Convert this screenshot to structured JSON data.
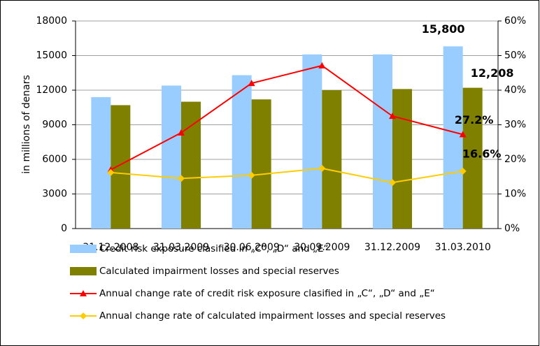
{
  "chart_data": {
    "type": "combo",
    "y_label": "in millions of denars",
    "categories": [
      "31.12.2008",
      "31.03.2009",
      "30.06.2009",
      "30.09.2009",
      "31.12.2009",
      "31.03.2010"
    ],
    "series": [
      {
        "name": "Credit risk exposure clasified in „C“, „D“ and „E“",
        "type": "bar",
        "color": "#99ccff",
        "values": [
          11400,
          12400,
          13300,
          15100,
          15100,
          15800
        ],
        "value_labels": [
          null,
          null,
          null,
          null,
          null,
          "15,800"
        ]
      },
      {
        "name": "Calculated impairment losses and special reserves",
        "type": "bar",
        "color": "#808000",
        "values": [
          10700,
          11000,
          11200,
          12000,
          12100,
          12208
        ],
        "value_labels": [
          null,
          null,
          null,
          null,
          null,
          "12,208"
        ]
      },
      {
        "name": "Annual change rate of credit risk exposure clasified in „C“, „D“ and „E“",
        "type": "line",
        "axis": "y2",
        "marker": "triangle",
        "color": "#ff0000",
        "values": [
          17.0,
          27.7,
          42.0,
          47.1,
          32.5,
          27.2
        ],
        "value_labels": [
          null,
          null,
          null,
          null,
          null,
          "27.2%"
        ]
      },
      {
        "name": "Annual change rate of calculated impairment losses and special reserves",
        "type": "line",
        "axis": "y2",
        "marker": "diamond",
        "color": "#ffcc00",
        "values": [
          16.2,
          14.5,
          15.4,
          17.4,
          13.3,
          16.6
        ],
        "value_labels": [
          null,
          null,
          null,
          null,
          null,
          "16.6%"
        ]
      }
    ],
    "ylim": [
      0,
      18000
    ],
    "yticks": [
      0,
      3000,
      6000,
      9000,
      12000,
      15000,
      18000
    ],
    "y2lim": [
      0,
      60
    ],
    "y2ticks": [
      {
        "value": 0,
        "label": "0%"
      },
      {
        "value": 10,
        "label": "10%"
      },
      {
        "value": 20,
        "label": "20%"
      },
      {
        "value": 30,
        "label": "30%"
      },
      {
        "value": 40,
        "label": "40%"
      },
      {
        "value": 50,
        "label": "50%"
      },
      {
        "value": 60,
        "label": "60%"
      }
    ],
    "grid": true
  }
}
